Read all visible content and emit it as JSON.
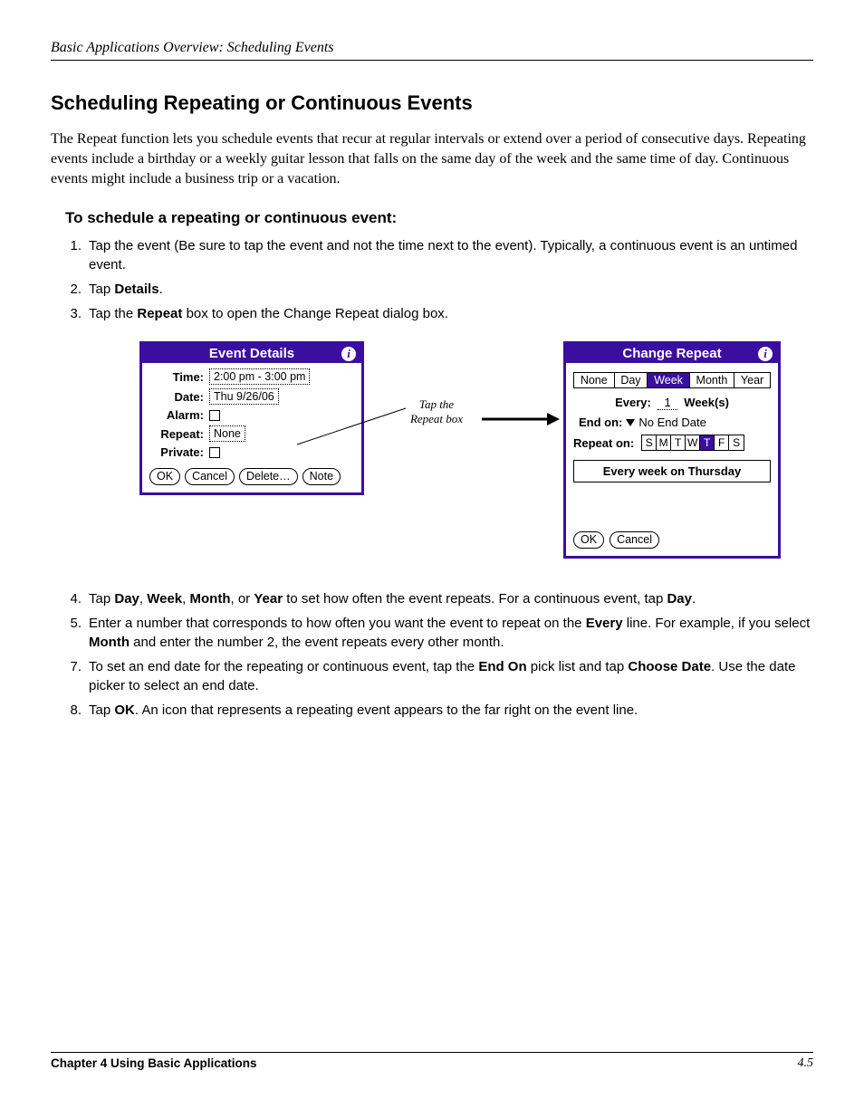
{
  "header": {
    "running": "Basic Applications Overview: Scheduling Events"
  },
  "section": {
    "title": "Scheduling Repeating or Continuous Events",
    "intro": "The Repeat function lets you schedule events that recur at regular intervals or extend over a period of consecutive days. Repeating events include a birthday or a weekly guitar lesson that falls on the same day of the week and the same time of day. Continuous events might include a business trip or a vacation.",
    "howto_title": "To schedule a repeating or continuous event:",
    "steps": [
      {
        "n": "1.",
        "pre": "Tap the event (Be sure to tap the event and not the time next to the event). Typically, a continuous event is an untimed event."
      },
      {
        "n": "2.",
        "pre": "Tap ",
        "bold1": "Details",
        "post1": "."
      },
      {
        "n": "3.",
        "pre": "Tap the ",
        "bold1": "Repeat",
        "post1": " box to open the Change Repeat dialog box."
      }
    ],
    "steps_after": [
      {
        "n": "4.",
        "parts": [
          "Tap ",
          "Day",
          ", ",
          "Week",
          ", ",
          "Month",
          ", or ",
          "Year",
          " to set how often the event repeats. For a continuous event, tap ",
          "Day",
          "."
        ],
        "bold_idx": [
          1,
          3,
          5,
          7,
          9
        ]
      },
      {
        "n": "5.",
        "parts": [
          "Enter a number that corresponds to how often you want the event to repeat on the ",
          "Every",
          " line. For example, if you select ",
          "Month",
          " and enter the number 2, the event repeats every other month."
        ],
        "bold_idx": [
          1,
          3
        ]
      },
      {
        "n": "7.",
        "parts": [
          "To set an end date for the repeating or continuous event, tap the ",
          "End On",
          " pick list and tap ",
          "Choose Date",
          ". Use the date picker to select an end date."
        ],
        "bold_idx": [
          1,
          3
        ]
      },
      {
        "n": "8.",
        "parts": [
          "Tap ",
          "OK",
          ". An icon that represents a repeating event appears to the far right on the event line."
        ],
        "bold_idx": [
          1
        ]
      }
    ]
  },
  "event_details": {
    "title": "Event Details",
    "time_label": "Time:",
    "time_value": "2:00 pm - 3:00 pm",
    "date_label": "Date:",
    "date_value": "Thu 9/26/06",
    "alarm_label": "Alarm:",
    "repeat_label": "Repeat:",
    "repeat_value": "None",
    "private_label": "Private:",
    "buttons": {
      "ok": "OK",
      "cancel": "Cancel",
      "delete": "Delete…",
      "note": "Note"
    }
  },
  "annotation": {
    "line1": "Tap the",
    "line2": "Repeat box"
  },
  "change_repeat": {
    "title": "Change Repeat",
    "tabs": [
      "None",
      "Day",
      "Week",
      "Month",
      "Year"
    ],
    "selected_tab": "Week",
    "every_label": "Every:",
    "every_value": "1",
    "every_unit": "Week(s)",
    "endon_label": "End on:",
    "endon_value": "No End Date",
    "repeaton_label": "Repeat on:",
    "days": [
      "S",
      "M",
      "T",
      "W",
      "T",
      "F",
      "S"
    ],
    "selected_day_index": 4,
    "summary": "Every week on Thursday",
    "buttons": {
      "ok": "OK",
      "cancel": "Cancel"
    }
  },
  "colors": {
    "accent": "#3a0fa0"
  },
  "footer": {
    "chapter": "Chapter 4 Using Basic Applications",
    "page": "4.5"
  }
}
